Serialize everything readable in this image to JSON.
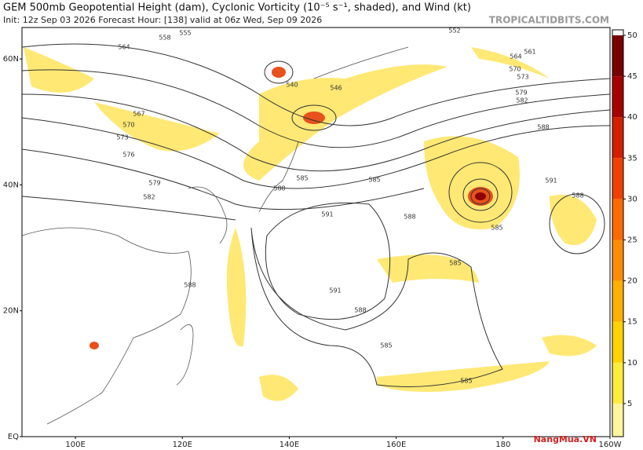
{
  "header": {
    "title": "GEM 500mb Geopotential Height (dam), Cyclonic Vorticity (10⁻⁵ s⁻¹, shaded), and Wind (kt)",
    "subtitle": "Init: 12z Sep 03 2026   Forecast Hour: [138]   valid at 06z Wed, Sep 09 2026",
    "source": "TROPICALTIDBITS.COM"
  },
  "map": {
    "lon_lim": [
      90,
      200
    ],
    "lat_lim": [
      0,
      65
    ],
    "lat_labels": [
      {
        "value": 60,
        "label": "60N"
      },
      {
        "value": 40,
        "label": "40N"
      },
      {
        "value": 20,
        "label": "20N"
      },
      {
        "value": 0,
        "label": "EQ"
      }
    ],
    "lon_labels": [
      {
        "value": 100,
        "label": "100E"
      },
      {
        "value": 120,
        "label": "120E"
      },
      {
        "value": 140,
        "label": "140E"
      },
      {
        "value": 160,
        "label": "160E"
      },
      {
        "value": 180,
        "label": "180"
      },
      {
        "value": 200,
        "label": "160W"
      }
    ]
  },
  "colorbar": {
    "lim": [
      0,
      50
    ],
    "ticks": [
      5,
      10,
      15,
      20,
      25,
      30,
      35,
      40,
      45,
      50
    ],
    "colors": [
      "#fff59d",
      "#ffeb3b",
      "#ffd200",
      "#ffb000",
      "#ff8c00",
      "#ff6a00",
      "#f04000",
      "#d41e00",
      "#a80000",
      "#7a0000"
    ]
  },
  "contour_labels": [
    "558",
    "555",
    "564",
    "567",
    "570",
    "573",
    "576",
    "579",
    "582",
    "585",
    "588",
    "540",
    "546",
    "552",
    "561",
    "564",
    "570",
    "573",
    "579",
    "582",
    "588",
    "591",
    "585",
    "588",
    "591",
    "588",
    "585",
    "591",
    "588",
    "585",
    "588",
    "585",
    "585"
  ],
  "footer": {
    "watermark": "NangMua.VN"
  }
}
